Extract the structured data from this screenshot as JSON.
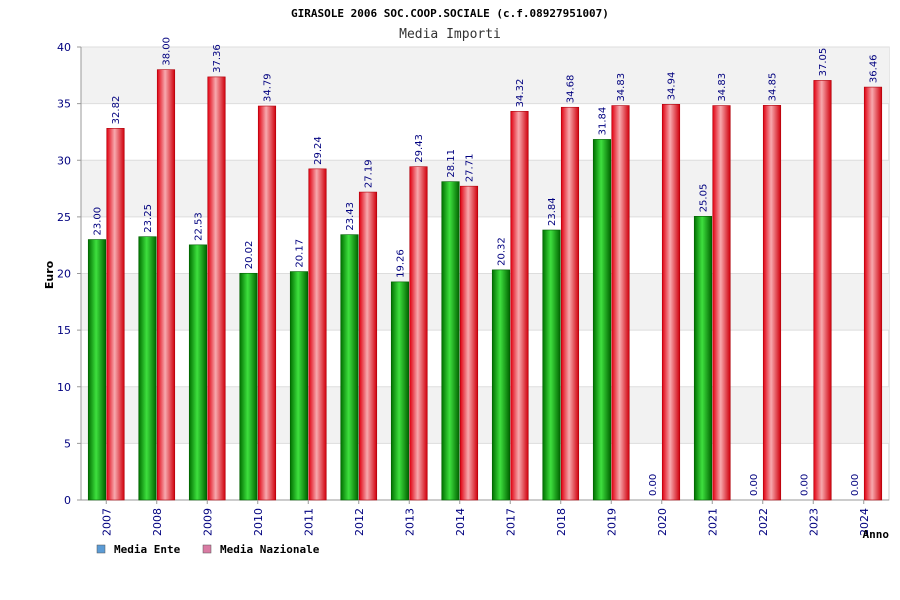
{
  "chart_data": {
    "type": "bar",
    "title": "GIRASOLE 2006 SOC.COOP.SOCIALE (c.f.08927951007)",
    "subtitle": "Media Importi",
    "ylabel": "Euro",
    "xlabel": "Anno",
    "ylim": [
      0,
      40
    ],
    "yticks": [
      0,
      5,
      10,
      15,
      20,
      25,
      30,
      35,
      40
    ],
    "grid": true,
    "legend_position": "bottom-left",
    "categories": [
      "2007",
      "2008",
      "2009",
      "2010",
      "2011",
      "2012",
      "2013",
      "2014",
      "2017",
      "2018",
      "2019",
      "2020",
      "2021",
      "2022",
      "2023",
      "2024"
    ],
    "series": [
      {
        "name": "Media Ente",
        "color": "#00a000",
        "legend_color": "#5b9bd5",
        "values": [
          23.0,
          23.25,
          22.53,
          20.02,
          20.17,
          23.43,
          19.26,
          28.11,
          20.32,
          23.84,
          31.84,
          0.0,
          25.05,
          0.0,
          0.0,
          0.0
        ],
        "labels": [
          "23.00",
          "23.25",
          "22.53",
          "20.02",
          "20.17",
          "23.43",
          "19.26",
          "28.11",
          "20.32",
          "23.84",
          "31.84",
          "0.00",
          "25.05",
          "0.00",
          "0.00",
          "0.00"
        ]
      },
      {
        "name": "Media Nazionale",
        "color": "#e8101a",
        "legend_color": "#d97ba3",
        "values": [
          32.82,
          38.0,
          37.36,
          34.79,
          29.24,
          27.19,
          29.43,
          27.71,
          34.32,
          34.68,
          34.83,
          34.94,
          34.83,
          34.85,
          37.05,
          36.46
        ],
        "labels": [
          "32.82",
          "38.00",
          "37.36",
          "34.79",
          "29.24",
          "27.19",
          "29.43",
          "27.71",
          "34.32",
          "34.68",
          "34.83",
          "34.94",
          "34.83",
          "34.85",
          "37.05",
          "36.46"
        ]
      }
    ]
  }
}
